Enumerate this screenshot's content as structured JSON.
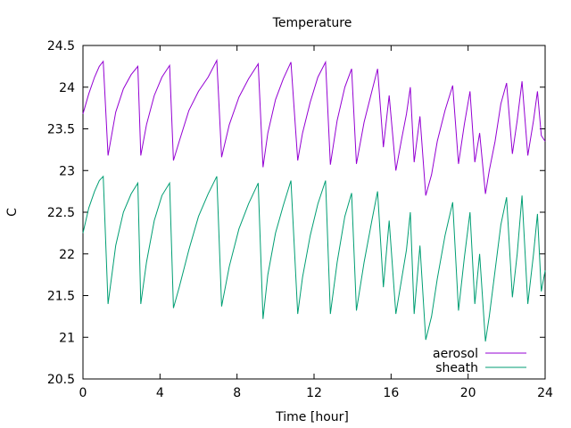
{
  "chart_data": {
    "type": "line",
    "title": "Temperature",
    "xlabel": "Time [hour]",
    "ylabel": "C",
    "xlim": [
      0,
      24
    ],
    "ylim": [
      20.5,
      24.5
    ],
    "x_ticks": [
      0,
      4,
      8,
      12,
      16,
      20,
      24
    ],
    "x_tick_labels": [
      "0",
      "4",
      "8",
      "12",
      "16",
      "20",
      "24"
    ],
    "y_ticks": [
      20.5,
      21,
      21.5,
      22,
      22.5,
      23,
      23.5,
      24,
      24.5
    ],
    "y_tick_labels": [
      "20.5",
      "21",
      "21.5",
      "22",
      "22.5",
      "23",
      "23.5",
      "24",
      "24.5"
    ],
    "grid": false,
    "legend_position": "bottom-right",
    "series": [
      {
        "name": "aerosol",
        "color": "#9400d3",
        "x": [
          0,
          0.3,
          0.6,
          0.85,
          1.05,
          1.3,
          1.7,
          2.1,
          2.5,
          2.85,
          3.0,
          3.3,
          3.7,
          4.1,
          4.5,
          4.7,
          5.0,
          5.5,
          6.0,
          6.5,
          6.95,
          7.2,
          7.6,
          8.1,
          8.6,
          9.1,
          9.35,
          9.6,
          10.0,
          10.4,
          10.8,
          11.15,
          11.4,
          11.8,
          12.2,
          12.6,
          12.85,
          13.2,
          13.6,
          13.95,
          14.2,
          14.6,
          15.0,
          15.3,
          15.6,
          15.9,
          16.25,
          16.55,
          16.8,
          17.0,
          17.2,
          17.5,
          17.8,
          18.1,
          18.4,
          18.8,
          19.2,
          19.5,
          19.8,
          20.1,
          20.35,
          20.6,
          20.9,
          21.1,
          21.4,
          21.7,
          22.0,
          22.3,
          22.55,
          22.8,
          23.1,
          23.4,
          23.6,
          23.8,
          24.0
        ],
        "y": [
          23.68,
          23.92,
          24.12,
          24.25,
          24.31,
          23.18,
          23.7,
          23.98,
          24.15,
          24.25,
          23.18,
          23.55,
          23.9,
          24.12,
          24.26,
          23.12,
          23.35,
          23.72,
          23.95,
          24.12,
          24.32,
          23.16,
          23.55,
          23.88,
          24.1,
          24.28,
          23.04,
          23.45,
          23.85,
          24.1,
          24.3,
          23.12,
          23.45,
          23.82,
          24.12,
          24.3,
          23.07,
          23.6,
          24.0,
          24.22,
          23.08,
          23.58,
          23.95,
          24.22,
          23.28,
          23.9,
          23.0,
          23.38,
          23.68,
          24.0,
          23.1,
          23.65,
          22.7,
          22.95,
          23.35,
          23.72,
          24.02,
          23.08,
          23.55,
          23.95,
          23.1,
          23.45,
          22.72,
          23.0,
          23.35,
          23.8,
          24.05,
          23.2,
          23.6,
          24.07,
          23.18,
          23.6,
          23.95,
          23.42,
          23.35
        ]
      },
      {
        "name": "sheath",
        "color": "#009e73",
        "x": [
          0,
          0.3,
          0.6,
          0.85,
          1.05,
          1.3,
          1.7,
          2.1,
          2.5,
          2.85,
          3.0,
          3.3,
          3.7,
          4.1,
          4.5,
          4.7,
          5.0,
          5.5,
          6.0,
          6.5,
          6.95,
          7.2,
          7.6,
          8.1,
          8.6,
          9.1,
          9.35,
          9.6,
          10.0,
          10.4,
          10.8,
          11.15,
          11.4,
          11.8,
          12.2,
          12.6,
          12.85,
          13.2,
          13.6,
          13.95,
          14.2,
          14.6,
          15.0,
          15.3,
          15.6,
          15.9,
          16.25,
          16.55,
          16.8,
          17.0,
          17.2,
          17.5,
          17.8,
          18.1,
          18.4,
          18.8,
          19.2,
          19.5,
          19.8,
          20.1,
          20.35,
          20.6,
          20.9,
          21.1,
          21.4,
          21.7,
          22.0,
          22.3,
          22.55,
          22.8,
          23.1,
          23.4,
          23.6,
          23.8,
          24.0
        ],
        "y": [
          22.25,
          22.55,
          22.75,
          22.88,
          22.93,
          21.4,
          22.1,
          22.5,
          22.72,
          22.85,
          21.4,
          21.9,
          22.4,
          22.7,
          22.85,
          21.35,
          21.6,
          22.05,
          22.45,
          22.72,
          22.93,
          21.37,
          21.85,
          22.3,
          22.6,
          22.85,
          21.22,
          21.75,
          22.25,
          22.58,
          22.88,
          21.28,
          21.72,
          22.22,
          22.6,
          22.88,
          21.28,
          21.9,
          22.45,
          22.73,
          21.32,
          21.9,
          22.4,
          22.75,
          21.6,
          22.4,
          21.28,
          21.7,
          22.05,
          22.5,
          21.28,
          22.1,
          20.97,
          21.25,
          21.7,
          22.22,
          22.62,
          21.32,
          21.95,
          22.5,
          21.4,
          22.0,
          20.95,
          21.25,
          21.8,
          22.35,
          22.68,
          21.48,
          22.0,
          22.7,
          21.4,
          22.0,
          22.48,
          21.55,
          21.8
        ]
      }
    ]
  }
}
